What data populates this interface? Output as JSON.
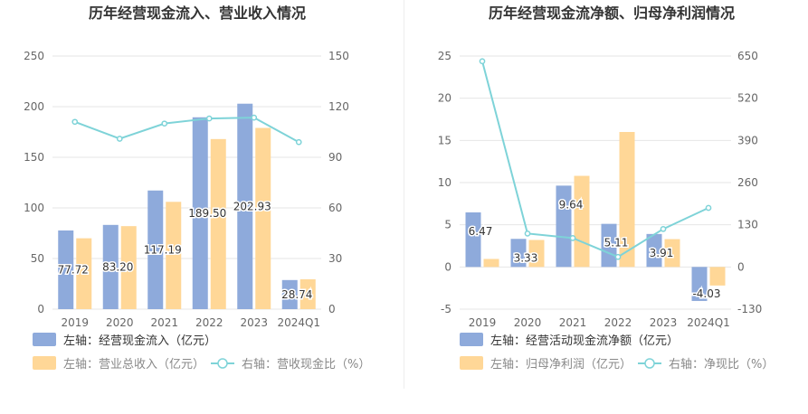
{
  "chart_data": [
    {
      "type": "bar",
      "title": "历年经营现金流入、营业收入情况",
      "categories": [
        "2019",
        "2020",
        "2021",
        "2022",
        "2023",
        "2024Q1"
      ],
      "left_axis": {
        "ylim": [
          0,
          250
        ],
        "ticks": [
          "250",
          "200",
          "150",
          "100",
          "50",
          "0"
        ]
      },
      "right_axis": {
        "ylim": [
          0,
          150
        ],
        "ticks": [
          "150",
          "120",
          "90",
          "60",
          "30",
          "0"
        ]
      },
      "series": [
        {
          "name": "左轴：经营现金流入（亿元）",
          "kind": "bar",
          "axis": "left",
          "color": "#8eaadb",
          "values": [
            77.72,
            83.2,
            117.19,
            189.5,
            202.93,
            28.74
          ],
          "labels": [
            "77.72",
            "83.20",
            "117.19",
            "189.50",
            "202.93",
            "28.74"
          ]
        },
        {
          "name": "左轴：营业总收入（亿元）",
          "kind": "bar",
          "axis": "left",
          "color": "#ffd797",
          "values": [
            70,
            82,
            106,
            168,
            179,
            29.5
          ]
        },
        {
          "name": "右轴：营收现金比（%）",
          "kind": "line",
          "axis": "right",
          "color": "#7ed3d8",
          "values": [
            111,
            101,
            110,
            113,
            113.5,
            99
          ]
        }
      ],
      "legend": "bottom",
      "grid": true
    },
    {
      "type": "bar",
      "title": "历年经营现金流净额、归母净利润情况",
      "categories": [
        "2019",
        "2020",
        "2021",
        "2022",
        "2023",
        "2024Q1"
      ],
      "left_axis": {
        "ylim": [
          -5,
          25
        ],
        "ticks": [
          "25",
          "20",
          "15",
          "10",
          "5",
          "0",
          "-5"
        ]
      },
      "right_axis": {
        "ylim": [
          -130,
          650
        ],
        "ticks": [
          "650",
          "520",
          "390",
          "260",
          "130",
          "0",
          "-130"
        ]
      },
      "series": [
        {
          "name": "左轴：经营活动现金流净额（亿元）",
          "kind": "bar",
          "axis": "left",
          "color": "#8eaadb",
          "values": [
            6.47,
            3.33,
            9.64,
            5.11,
            3.91,
            -4.03
          ],
          "labels": [
            "6.47",
            "3.33",
            "9.64",
            "5.11",
            "3.91",
            "-4.03"
          ]
        },
        {
          "name": "左轴：归母净利润（亿元）",
          "kind": "bar",
          "axis": "left",
          "color": "#ffd797",
          "values": [
            0.95,
            3.2,
            10.8,
            16.0,
            3.3,
            -2.2
          ]
        },
        {
          "name": "右轴：净现比（%）",
          "kind": "line",
          "axis": "right",
          "color": "#7ed3d8",
          "values": [
            634,
            103,
            89,
            31,
            117,
            182
          ]
        }
      ],
      "legend": "bottom",
      "grid": true
    }
  ]
}
